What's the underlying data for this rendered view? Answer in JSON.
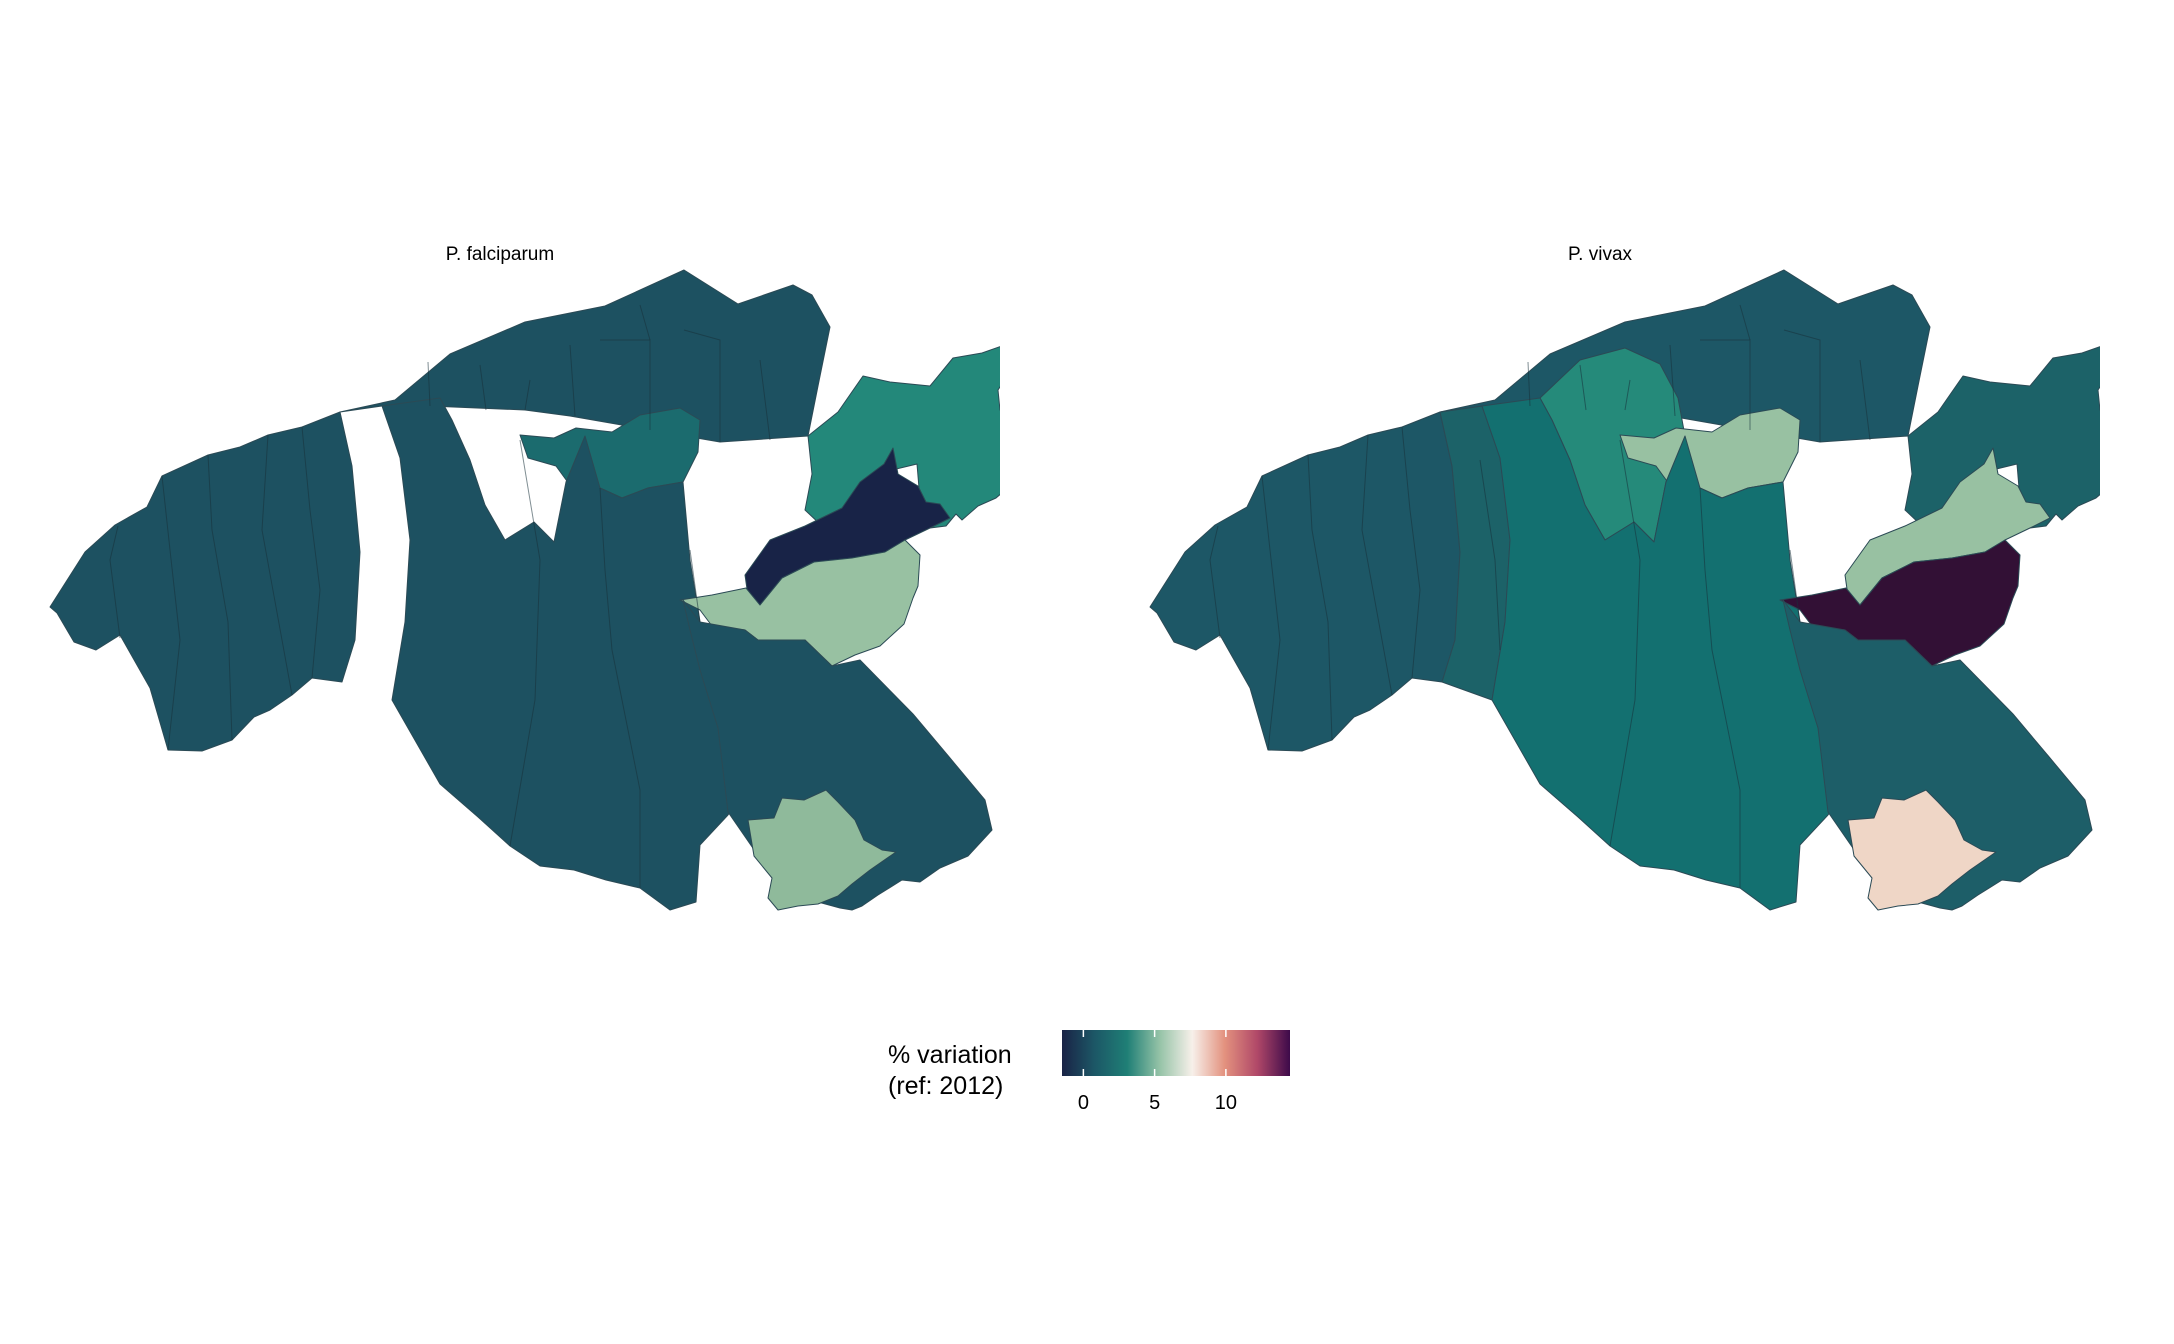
{
  "panels": [
    {
      "title": "P. falciparum",
      "districts": [
        {
          "id": "west-basin",
          "value": 0.1,
          "color": "#1d5161"
        },
        {
          "id": "central-south",
          "value": 0.1,
          "color": "#1d5161"
        },
        {
          "id": "north-strip",
          "value": 0.2,
          "color": "#1d5161"
        },
        {
          "id": "north-central-pocket",
          "value": 2.2,
          "color": "#1b6b6e"
        },
        {
          "id": "northeast",
          "value": 2.8,
          "color": "#23887a"
        },
        {
          "id": "east-diagonal",
          "value": -1.2,
          "color": "#182347"
        },
        {
          "id": "east-band",
          "value": 5.0,
          "color": "#98c1a2"
        },
        {
          "id": "southeast",
          "value": 0.2,
          "color": "#1d5161"
        },
        {
          "id": "south-enclave",
          "value": 4.8,
          "color": "#8fba9b"
        }
      ]
    },
    {
      "title": "P. vivax",
      "districts": [
        {
          "id": "west-basin",
          "value": 0.3,
          "color": "#1d5766"
        },
        {
          "id": "central-west",
          "value": 1.4,
          "color": "#1c6268"
        },
        {
          "id": "north-strip",
          "value": 0.6,
          "color": "#1d5766"
        },
        {
          "id": "north-green",
          "value": 3.0,
          "color": "#258a7a"
        },
        {
          "id": "north-central-pocket",
          "value": 4.9,
          "color": "#98c1a2"
        },
        {
          "id": "central-south",
          "value": 2.0,
          "color": "#137070"
        },
        {
          "id": "northeast",
          "value": 1.5,
          "color": "#1c6268"
        },
        {
          "id": "east-diagonal",
          "value": 5.0,
          "color": "#98c1a2"
        },
        {
          "id": "east-band",
          "value": 14.0,
          "color": "#321035"
        },
        {
          "id": "southeast",
          "value": 1.2,
          "color": "#1d5e68"
        },
        {
          "id": "south-enclave",
          "value": 6.8,
          "color": "#efd6c6"
        }
      ]
    }
  ],
  "legend": {
    "title_line1": "% variation",
    "title_line2": "(ref: 2012)",
    "min": -1.5,
    "max": 14.5,
    "ticks": [
      {
        "label": "0",
        "value": 0
      },
      {
        "label": "5",
        "value": 5
      },
      {
        "label": "10",
        "value": 10
      }
    ],
    "gradient": [
      "#1a2346",
      "#1c5766",
      "#1f7f76",
      "#95c3a7",
      "#f7f0ea",
      "#e3917e",
      "#b04868",
      "#3d0a4a"
    ]
  }
}
